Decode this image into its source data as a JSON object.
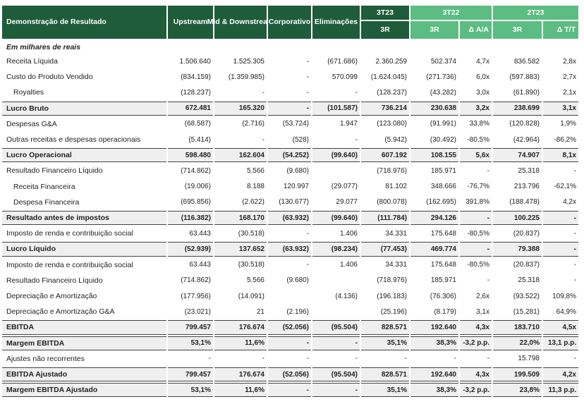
{
  "header": {
    "title": "Demonstração de Resultado",
    "columns": [
      "Upstream",
      "Mid & Downstream",
      "Corporativo",
      "Eliminações"
    ],
    "groups": [
      {
        "name": "3T23",
        "sub": [
          "3R"
        ]
      },
      {
        "name": "3T22",
        "sub": [
          "3R",
          "Δ A/A"
        ]
      },
      {
        "name": "2T23",
        "sub": [
          "3R",
          "Δ T/T"
        ]
      }
    ]
  },
  "subtitle": "Em milhares de reais",
  "table": {
    "rows": [
      {
        "label": "Receita Líquida",
        "cells": [
          "1.506.640",
          "1.525.305",
          "-",
          "(671.686)",
          "2.360.259",
          "502.374",
          "4,7x",
          "836.582",
          "2,8x"
        ]
      },
      {
        "label": "Custo do Produto Vendido",
        "cells": [
          "(834.159)",
          "(1.359.985)",
          "-",
          "570.099",
          "(1.624.045)",
          "(271.736)",
          "6,0x",
          "(597.883)",
          "2,7x"
        ]
      },
      {
        "label": "Royalties",
        "indent": true,
        "cells": [
          "(128.237)",
          "-",
          "-",
          "-",
          "(128.237)",
          "(43.282)",
          "3,0x",
          "(61.890)",
          "2,1x"
        ]
      },
      {
        "label": "Lucro Bruto",
        "emphasis": true,
        "cells": [
          "672.481",
          "165.320",
          "-",
          "(101.587)",
          "736.214",
          "230.638",
          "3,2x",
          "238.699",
          "3,1x"
        ]
      },
      {
        "label": "Despesas G&A",
        "cells": [
          "(68.587)",
          "(2.716)",
          "(53.724)",
          "1.947",
          "(123.080)",
          "(91.991)",
          "33,8%",
          "(120.828)",
          "1,9%"
        ]
      },
      {
        "label": "Outras receitas e despesas operacionais",
        "cells": [
          "(5.414)",
          "-",
          "(528)",
          "-",
          "(5.942)",
          "(30.492)",
          "-80,5%",
          "(42.964)",
          "-86,2%"
        ]
      },
      {
        "label": "Lucro Operacional",
        "emphasis": true,
        "cells": [
          "598.480",
          "162.604",
          "(54.252)",
          "(99.640)",
          "607.192",
          "108.155",
          "5,6x",
          "74.907",
          "8,1x"
        ]
      },
      {
        "label": "Resultado Financeiro Líquido",
        "cells": [
          "(714.862)",
          "5.566",
          "(9.680)",
          null,
          "(718.976)",
          "185.971",
          "-",
          "25.318",
          "-"
        ]
      },
      {
        "label": "Receita Financeira",
        "indent": true,
        "cells": [
          "(19.006)",
          "8.188",
          "120.997",
          "(29.077)",
          "81.102",
          "348.666",
          "-76,7%",
          "213.796",
          "-62,1%"
        ]
      },
      {
        "label": "Despesa Financeira",
        "indent": true,
        "cells": [
          "(695.856)",
          "(2.622)",
          "(130.677)",
          "29.077",
          "(800.078)",
          "(162.695)",
          "391,8%",
          "(188.478)",
          "4,2x"
        ]
      },
      {
        "label": "Resultado antes de impostos",
        "emphasis": true,
        "cells": [
          "(116.382)",
          "168.170",
          "(63.932)",
          "(99.640)",
          "(111.784)",
          "294.126",
          "-",
          "100.225",
          "-"
        ]
      },
      {
        "label": "Imposto de renda e contribuição social",
        "cells": [
          "63.443",
          "(30.518)",
          "-",
          "1.406",
          "34.331",
          "175.648",
          "-80,5%",
          "(20.837)",
          "-"
        ]
      },
      {
        "label": "Lucro Líquido",
        "emphasis": true,
        "cells": [
          "(52.939)",
          "137.652",
          "(63.932)",
          "(98.234)",
          "(77.453)",
          "469.774",
          "-",
          "79.388",
          "-"
        ]
      },
      {
        "label": "Imposto de renda e contribuição social",
        "cells": [
          "63.443",
          "(30.518)",
          "-",
          "1.406",
          "34.331",
          "175.648",
          "-80,5%",
          "(20.837)",
          "-"
        ]
      },
      {
        "label": "Resultado Financeiro Líquido",
        "cells": [
          "(714.862)",
          "5.566",
          "(9.680)",
          null,
          "(718.976)",
          "185.971",
          "-",
          "25.318",
          "-"
        ]
      },
      {
        "label": "Depreciação e Amortização",
        "cells": [
          "(177.956)",
          "(14.091)",
          null,
          "(4.136)",
          "(196.183)",
          "(76.306)",
          "2,6x",
          "(93.522)",
          "109,8%"
        ]
      },
      {
        "label": "Depreciação e Amortização G&A",
        "cells": [
          "(23.021)",
          "21",
          "(2.196)",
          null,
          "(25.196)",
          "(8.179)",
          "3,1x",
          "(15.281)",
          "64,9%"
        ]
      },
      {
        "label": "EBITDA",
        "emphasis": true,
        "cells": [
          "799.457",
          "176.674",
          "(52.056)",
          "(95.504)",
          "828.571",
          "192.640",
          "4,3x",
          "183.710",
          "4,5x"
        ]
      },
      {
        "label": "Margem EBITDA",
        "emphasis": true,
        "cells": [
          "53,1%",
          "11,6%",
          "-",
          "-",
          "35,1%",
          "38,3%",
          "-3,2 p.p.",
          "22,0%",
          "13,1 p.p."
        ]
      },
      {
        "label": "Ajustes não recorrentes",
        "cells": [
          "-",
          "-",
          "-",
          "-",
          "-",
          "-",
          "-",
          "15.798",
          "-"
        ]
      },
      {
        "label": "EBITDA Ajustado",
        "emphasis": true,
        "cells": [
          "799.457",
          "176.674",
          "(52.056)",
          "(95.504)",
          "828.571",
          "192.640",
          "4,3x",
          "199.509",
          "4,2x"
        ]
      },
      {
        "label": "Margem EBITDA Ajustado",
        "emphasis": true,
        "cells": [
          "53,1%",
          "11,6%",
          "-",
          "-",
          "35,1%",
          "38,3%",
          "-3,2 p.p.",
          "23,8%",
          "11,3 p.p."
        ]
      }
    ]
  }
}
